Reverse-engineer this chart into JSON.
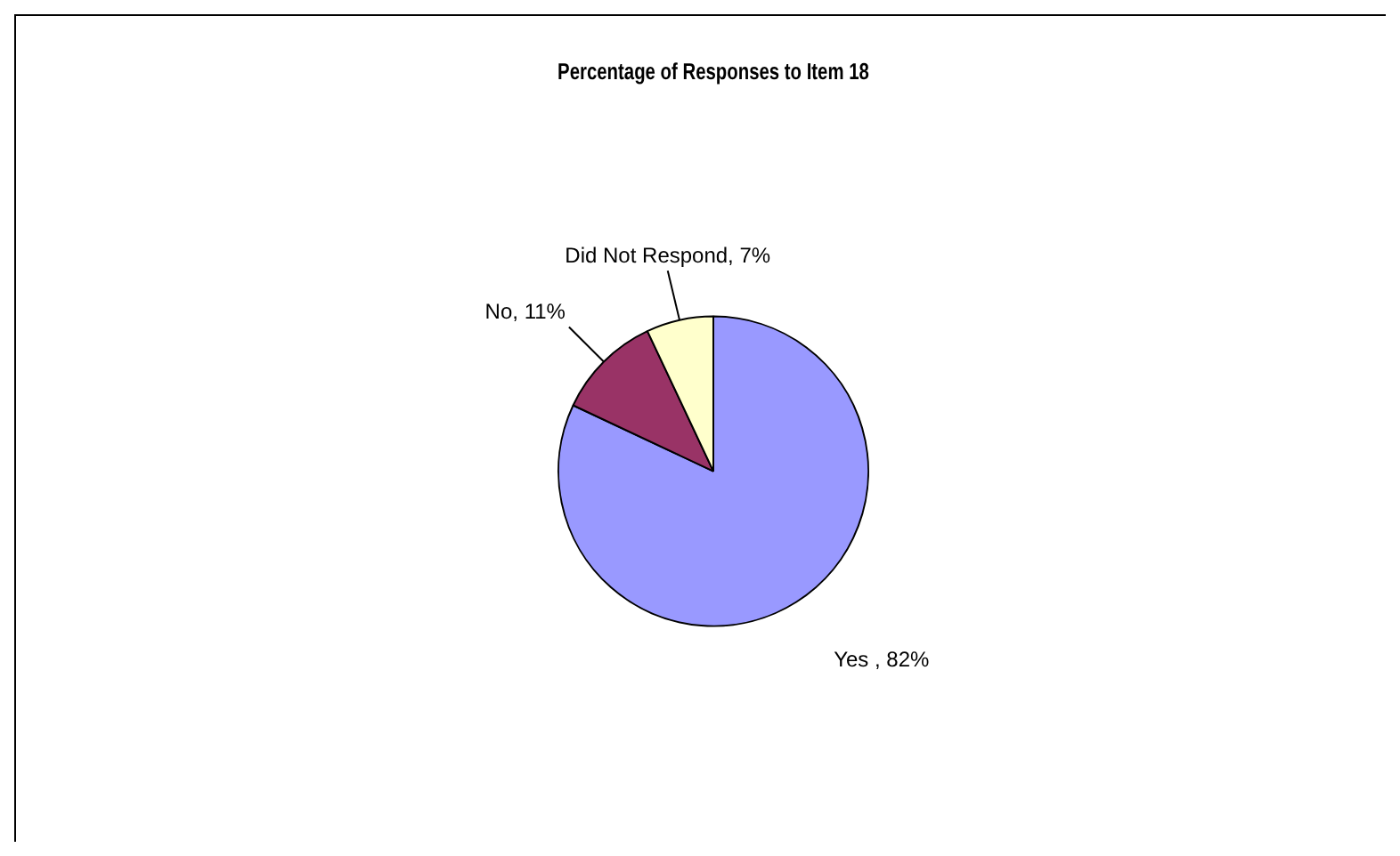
{
  "chart_data": {
    "type": "pie",
    "title": "Percentage of Responses to Item 18",
    "categories": [
      "Yes ",
      "No",
      "Did Not Respond"
    ],
    "values": [
      82,
      11,
      7
    ],
    "value_labels": [
      "82%",
      "11%",
      "7%"
    ],
    "colors": [
      "#9999ff",
      "#993366",
      "#ffffcc"
    ],
    "legend": false
  }
}
